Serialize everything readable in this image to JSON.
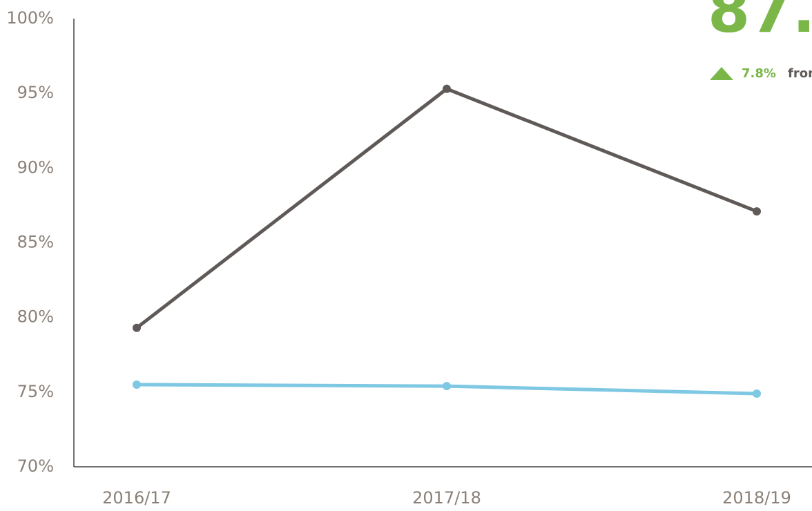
{
  "chart_data": {
    "type": "line",
    "categories": [
      "2016/17",
      "2017/18",
      "2018/19"
    ],
    "series": [
      {
        "color": "#5f5a57",
        "values": [
          79.3,
          95.3,
          87.1
        ]
      },
      {
        "color": "#7ec8e3",
        "values": [
          75.5,
          75.4,
          74.9
        ]
      }
    ],
    "ylim": [
      70,
      100
    ],
    "yticks": [
      {
        "value": 70,
        "label": "70%"
      },
      {
        "value": 75,
        "label": "75%"
      },
      {
        "value": 80,
        "label": "80%"
      },
      {
        "value": 85,
        "label": "85%"
      },
      {
        "value": 90,
        "label": "90%"
      },
      {
        "value": 95,
        "label": "95%"
      },
      {
        "value": 100,
        "label": "100%"
      }
    ],
    "grid": false,
    "annotations": {
      "headline": "87.",
      "change": "7.8%",
      "change_text": "from"
    }
  }
}
